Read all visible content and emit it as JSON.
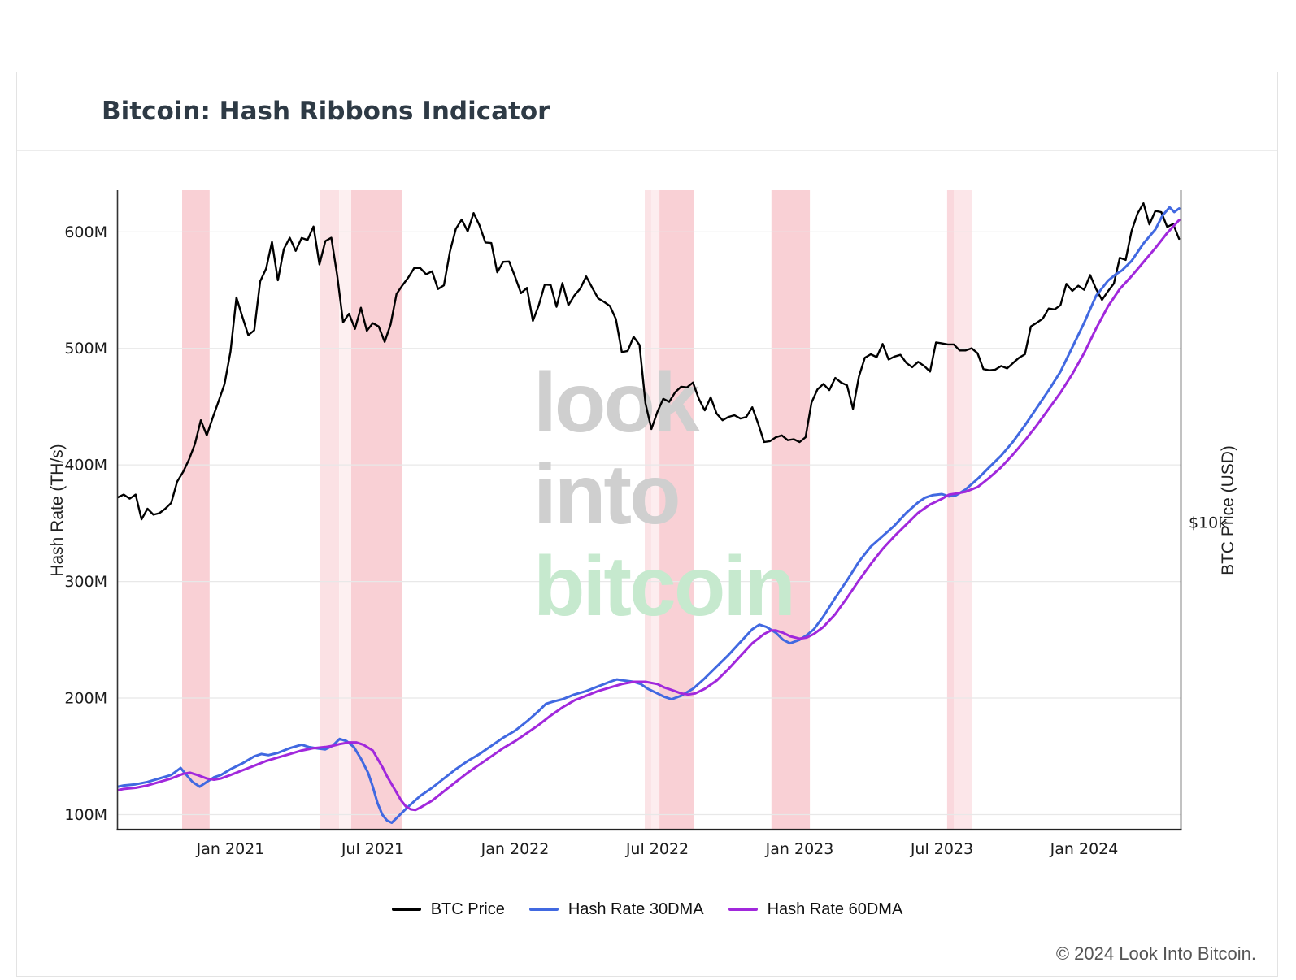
{
  "page": {
    "title": "Bitcoin: Hash Ribbons Indicator",
    "footer": "© 2024 Look Into Bitcoin."
  },
  "watermark": {
    "lines": [
      {
        "text": "look",
        "color": "#cfcfcf"
      },
      {
        "text": "into",
        "color": "#cfcfcf"
      },
      {
        "text": "bitcoin",
        "color": "#c6e9ce"
      }
    ]
  },
  "legend": {
    "items": [
      {
        "label": "BTC Price",
        "color": "#000000"
      },
      {
        "label": "Hash Rate 30DMA",
        "color": "#4169E1"
      },
      {
        "label": "Hash Rate 60DMA",
        "color": "#A128DC"
      }
    ]
  },
  "chart_data": {
    "type": "line",
    "title": "Bitcoin: Hash Ribbons Indicator",
    "x_unit": "months since 2020-08-01 (t=5 is Jan 2021)",
    "x_range_months": [
      0.22,
      45.1
    ],
    "left_axis": {
      "title": "Hash Rate (TH/s)",
      "scale": "linear",
      "ticks": [
        {
          "label": "600M",
          "value": 600
        },
        {
          "label": "500M",
          "value": 500
        },
        {
          "label": "400M",
          "value": 400
        },
        {
          "label": "300M",
          "value": 300
        },
        {
          "label": "200M",
          "value": 200
        },
        {
          "label": "100M",
          "value": 100
        }
      ]
    },
    "right_axis": {
      "title": "BTC Price (USD)",
      "scale": "log",
      "ticks": [
        {
          "label": "$10k",
          "value": 10
        }
      ]
    },
    "x_axis": {
      "ticks": [
        {
          "label": "Jan 2021",
          "t": 5
        },
        {
          "label": "Jul 2021",
          "t": 11
        },
        {
          "label": "Jan 2022",
          "t": 17
        },
        {
          "label": "Jul 2022",
          "t": 23
        },
        {
          "label": "Jan 2023",
          "t": 29
        },
        {
          "label": "Jul 2023",
          "t": 35
        },
        {
          "label": "Jan 2024",
          "t": 41
        }
      ]
    },
    "grid": "horizontal-only",
    "band_color": "#F8C8CE",
    "bands": [
      {
        "t0": 2.96,
        "t1": 4.12,
        "opacity": 0.85,
        "period": "Nov–Dec 2020"
      },
      {
        "t0": 8.79,
        "t1": 9.58,
        "opacity": 0.55,
        "period": "late Apr–May 2021"
      },
      {
        "t0": 9.58,
        "t1": 10.09,
        "opacity": 0.28,
        "period": "May–Jun 2021"
      },
      {
        "t0": 10.09,
        "t1": 12.22,
        "opacity": 0.85,
        "period": "Jun–Aug 2021"
      },
      {
        "t0": 22.47,
        "t1": 22.74,
        "opacity": 0.5,
        "period": "mid Jun 2022"
      },
      {
        "t0": 22.74,
        "t1": 23.09,
        "opacity": 0.32,
        "period": "late Jun 2022"
      },
      {
        "t0": 23.09,
        "t1": 24.56,
        "opacity": 0.85,
        "period": "Jul–Aug 2022"
      },
      {
        "t0": 27.81,
        "t1": 29.43,
        "opacity": 0.85,
        "period": "Nov 2022–Jan 2023"
      },
      {
        "t0": 35.22,
        "t1": 35.5,
        "opacity": 0.7,
        "period": "early Jul 2023"
      },
      {
        "t0": 35.5,
        "t1": 36.28,
        "opacity": 0.45,
        "period": "Jul–Aug 2023"
      }
    ],
    "series": [
      {
        "name": "BTC Price",
        "axis": "right",
        "color": "#000000",
        "width": 2.4,
        "unit": "USD thousands",
        "t_start": 0.25,
        "t_step": 0.25,
        "values": [
          11.7,
          11.9,
          11.6,
          11.9,
          10.2,
          10.9,
          10.5,
          10.6,
          10.9,
          11.3,
          12.9,
          13.7,
          14.8,
          16.3,
          18.9,
          17.2,
          19.2,
          21.3,
          23.7,
          29.0,
          40.6,
          36.0,
          32.1,
          33.1,
          44.9,
          48.6,
          57.4,
          45.2,
          54.9,
          58.9,
          54.3,
          58.8,
          58.1,
          63.2,
          49.9,
          57.7,
          58.9,
          46.5,
          34.8,
          36.7,
          33.4,
          38.1,
          33.0,
          34.6,
          33.9,
          30.8,
          34.3,
          41.5,
          43.8,
          46.0,
          48.8,
          48.8,
          46.9,
          47.8,
          42.8,
          43.8,
          53.9,
          62.2,
          66.0,
          61.3,
          68.7,
          63.6,
          57.2,
          57.0,
          47.5,
          50.7,
          50.8,
          46.2,
          41.7,
          43.1,
          35.1,
          38.7,
          44.0,
          43.9,
          38.3,
          44.4,
          38.7,
          41.1,
          42.9,
          46.3,
          43.2,
          40.4,
          39.5,
          38.5,
          35.5,
          28.9,
          29.1,
          31.8,
          30.2,
          21.0,
          17.9,
          19.9,
          21.6,
          21.2,
          22.5,
          23.3,
          23.2,
          23.9,
          21.6,
          20.1,
          21.8,
          19.7,
          18.9,
          19.3,
          19.5,
          19.1,
          19.3,
          20.5,
          18.5,
          16.5,
          16.6,
          17.0,
          17.2,
          16.7,
          16.8,
          16.5,
          17.0,
          21.1,
          22.9,
          23.7,
          22.8,
          24.6,
          23.9,
          23.5,
          20.3,
          24.8,
          27.9,
          28.5,
          28.0,
          30.4,
          27.6,
          28.1,
          28.4,
          27.0,
          26.3,
          27.2,
          26.5,
          25.6,
          30.7,
          30.5,
          30.3,
          30.3,
          29.2,
          29.2,
          29.6,
          28.7,
          26.0,
          25.8,
          25.9,
          26.5,
          26.1,
          27.0,
          27.9,
          28.5,
          33.9,
          34.7,
          35.6,
          37.9,
          37.7,
          38.7,
          44.2,
          42.3,
          43.7,
          42.6,
          46.7,
          42.8,
          40.0,
          42.2,
          44.3,
          52.0,
          51.3,
          61.5,
          68.5,
          73.0,
          64.0,
          69.6,
          69.1,
          63.0,
          64.2,
          58.5
        ]
      },
      {
        "name": "Hash Rate 30DMA",
        "axis": "left",
        "color": "#4169E1",
        "width": 3,
        "unit": "EH/s (M TH/s)",
        "points": [
          [
            0.25,
            124
          ],
          [
            0.5,
            125
          ],
          [
            1,
            126
          ],
          [
            1.5,
            128
          ],
          [
            2,
            131
          ],
          [
            2.5,
            134
          ],
          [
            2.9,
            140
          ],
          [
            3.1,
            135
          ],
          [
            3.4,
            128
          ],
          [
            3.7,
            124
          ],
          [
            4,
            128
          ],
          [
            4.3,
            132
          ],
          [
            4.6,
            134
          ],
          [
            5,
            139
          ],
          [
            5.5,
            144
          ],
          [
            6,
            150
          ],
          [
            6.3,
            152
          ],
          [
            6.6,
            151
          ],
          [
            7,
            153
          ],
          [
            7.5,
            157
          ],
          [
            8,
            160
          ],
          [
            8.3,
            158
          ],
          [
            8.6,
            157
          ],
          [
            9,
            156
          ],
          [
            9.3,
            159
          ],
          [
            9.6,
            165
          ],
          [
            9.9,
            163
          ],
          [
            10.2,
            158
          ],
          [
            10.5,
            148
          ],
          [
            10.8,
            136
          ],
          [
            11,
            124
          ],
          [
            11.2,
            110
          ],
          [
            11.4,
            100
          ],
          [
            11.6,
            95
          ],
          [
            11.8,
            93
          ],
          [
            12,
            97
          ],
          [
            12.2,
            101
          ],
          [
            12.5,
            107
          ],
          [
            13,
            116
          ],
          [
            13.5,
            123
          ],
          [
            14,
            131
          ],
          [
            14.5,
            139
          ],
          [
            15,
            146
          ],
          [
            15.5,
            152
          ],
          [
            16,
            159
          ],
          [
            16.5,
            166
          ],
          [
            17,
            172
          ],
          [
            17.5,
            180
          ],
          [
            18,
            189
          ],
          [
            18.3,
            195
          ],
          [
            18.6,
            197
          ],
          [
            19,
            199
          ],
          [
            19.5,
            203
          ],
          [
            20,
            206
          ],
          [
            20.5,
            210
          ],
          [
            21,
            214
          ],
          [
            21.3,
            216
          ],
          [
            21.6,
            215
          ],
          [
            22,
            214
          ],
          [
            22.3,
            212
          ],
          [
            22.6,
            208
          ],
          [
            23,
            204
          ],
          [
            23.3,
            201
          ],
          [
            23.6,
            199
          ],
          [
            24,
            202
          ],
          [
            24.5,
            208
          ],
          [
            25,
            217
          ],
          [
            25.5,
            227
          ],
          [
            26,
            237
          ],
          [
            26.5,
            248
          ],
          [
            27,
            259
          ],
          [
            27.3,
            263
          ],
          [
            27.6,
            261
          ],
          [
            28,
            256
          ],
          [
            28.3,
            250
          ],
          [
            28.6,
            247
          ],
          [
            29,
            250
          ],
          [
            29.3,
            254
          ],
          [
            29.6,
            259
          ],
          [
            30,
            270
          ],
          [
            30.5,
            286
          ],
          [
            31,
            301
          ],
          [
            31.5,
            317
          ],
          [
            32,
            330
          ],
          [
            32.5,
            339
          ],
          [
            33,
            348
          ],
          [
            33.5,
            359
          ],
          [
            34,
            368
          ],
          [
            34.3,
            372
          ],
          [
            34.6,
            374
          ],
          [
            35,
            375
          ],
          [
            35.3,
            373
          ],
          [
            35.6,
            374
          ],
          [
            36,
            379
          ],
          [
            36.5,
            388
          ],
          [
            37,
            398
          ],
          [
            37.5,
            408
          ],
          [
            38,
            420
          ],
          [
            38.5,
            434
          ],
          [
            39,
            449
          ],
          [
            39.5,
            464
          ],
          [
            40,
            480
          ],
          [
            40.5,
            501
          ],
          [
            41,
            522
          ],
          [
            41.5,
            545
          ],
          [
            42,
            558
          ],
          [
            42.3,
            563
          ],
          [
            42.6,
            567
          ],
          [
            43,
            575
          ],
          [
            43.5,
            590
          ],
          [
            44,
            602
          ],
          [
            44.3,
            614
          ],
          [
            44.6,
            621
          ],
          [
            44.8,
            617
          ],
          [
            45,
            620
          ]
        ]
      },
      {
        "name": "Hash Rate 60DMA",
        "axis": "left",
        "color": "#A128DC",
        "width": 3,
        "unit": "EH/s (M TH/s)",
        "points": [
          [
            0.25,
            121
          ],
          [
            0.5,
            122
          ],
          [
            1,
            123
          ],
          [
            1.5,
            125
          ],
          [
            2,
            128
          ],
          [
            2.5,
            131
          ],
          [
            3,
            135
          ],
          [
            3.3,
            136
          ],
          [
            3.6,
            134
          ],
          [
            4,
            131
          ],
          [
            4.3,
            130
          ],
          [
            4.6,
            131
          ],
          [
            5,
            134
          ],
          [
            5.5,
            138
          ],
          [
            6,
            142
          ],
          [
            6.5,
            146
          ],
          [
            7,
            149
          ],
          [
            7.5,
            152
          ],
          [
            8,
            155
          ],
          [
            8.5,
            157
          ],
          [
            9,
            158
          ],
          [
            9.3,
            159
          ],
          [
            9.6,
            160.5
          ],
          [
            10,
            162
          ],
          [
            10.3,
            162
          ],
          [
            10.6,
            160
          ],
          [
            11,
            155
          ],
          [
            11.2,
            148
          ],
          [
            11.4,
            141
          ],
          [
            11.6,
            133
          ],
          [
            11.8,
            126
          ],
          [
            12,
            119
          ],
          [
            12.2,
            112
          ],
          [
            12.4,
            107
          ],
          [
            12.6,
            104.5
          ],
          [
            12.8,
            104
          ],
          [
            13,
            106
          ],
          [
            13.5,
            112
          ],
          [
            14,
            120
          ],
          [
            14.5,
            128
          ],
          [
            15,
            136
          ],
          [
            15.5,
            143
          ],
          [
            16,
            150
          ],
          [
            16.5,
            157
          ],
          [
            17,
            163
          ],
          [
            17.5,
            170
          ],
          [
            18,
            177
          ],
          [
            18.5,
            185
          ],
          [
            19,
            192
          ],
          [
            19.5,
            198
          ],
          [
            20,
            202
          ],
          [
            20.5,
            206
          ],
          [
            21,
            209
          ],
          [
            21.5,
            212
          ],
          [
            22,
            214
          ],
          [
            22.5,
            214
          ],
          [
            23,
            212
          ],
          [
            23.3,
            209
          ],
          [
            23.6,
            207
          ],
          [
            24,
            204
          ],
          [
            24.3,
            203
          ],
          [
            24.6,
            204
          ],
          [
            25,
            208
          ],
          [
            25.5,
            215
          ],
          [
            26,
            225
          ],
          [
            26.5,
            236
          ],
          [
            27,
            247
          ],
          [
            27.5,
            255
          ],
          [
            27.8,
            258
          ],
          [
            28,
            258
          ],
          [
            28.3,
            256
          ],
          [
            28.6,
            253
          ],
          [
            29,
            251
          ],
          [
            29.3,
            252
          ],
          [
            29.6,
            255
          ],
          [
            30,
            261
          ],
          [
            30.5,
            272
          ],
          [
            31,
            286
          ],
          [
            31.5,
            301
          ],
          [
            32,
            315
          ],
          [
            32.5,
            328
          ],
          [
            33,
            339
          ],
          [
            33.5,
            349
          ],
          [
            34,
            359
          ],
          [
            34.5,
            366
          ],
          [
            35,
            371
          ],
          [
            35.3,
            374.5
          ],
          [
            35.6,
            375.5
          ],
          [
            36,
            377
          ],
          [
            36.5,
            381
          ],
          [
            37,
            389
          ],
          [
            37.5,
            398
          ],
          [
            38,
            409
          ],
          [
            38.5,
            421
          ],
          [
            39,
            434
          ],
          [
            39.5,
            448
          ],
          [
            40,
            462
          ],
          [
            40.5,
            478
          ],
          [
            41,
            496
          ],
          [
            41.5,
            517
          ],
          [
            42,
            536
          ],
          [
            42.5,
            551
          ],
          [
            43,
            562
          ],
          [
            43.5,
            574
          ],
          [
            44,
            586
          ],
          [
            44.5,
            599
          ],
          [
            45,
            610
          ]
        ]
      }
    ]
  }
}
